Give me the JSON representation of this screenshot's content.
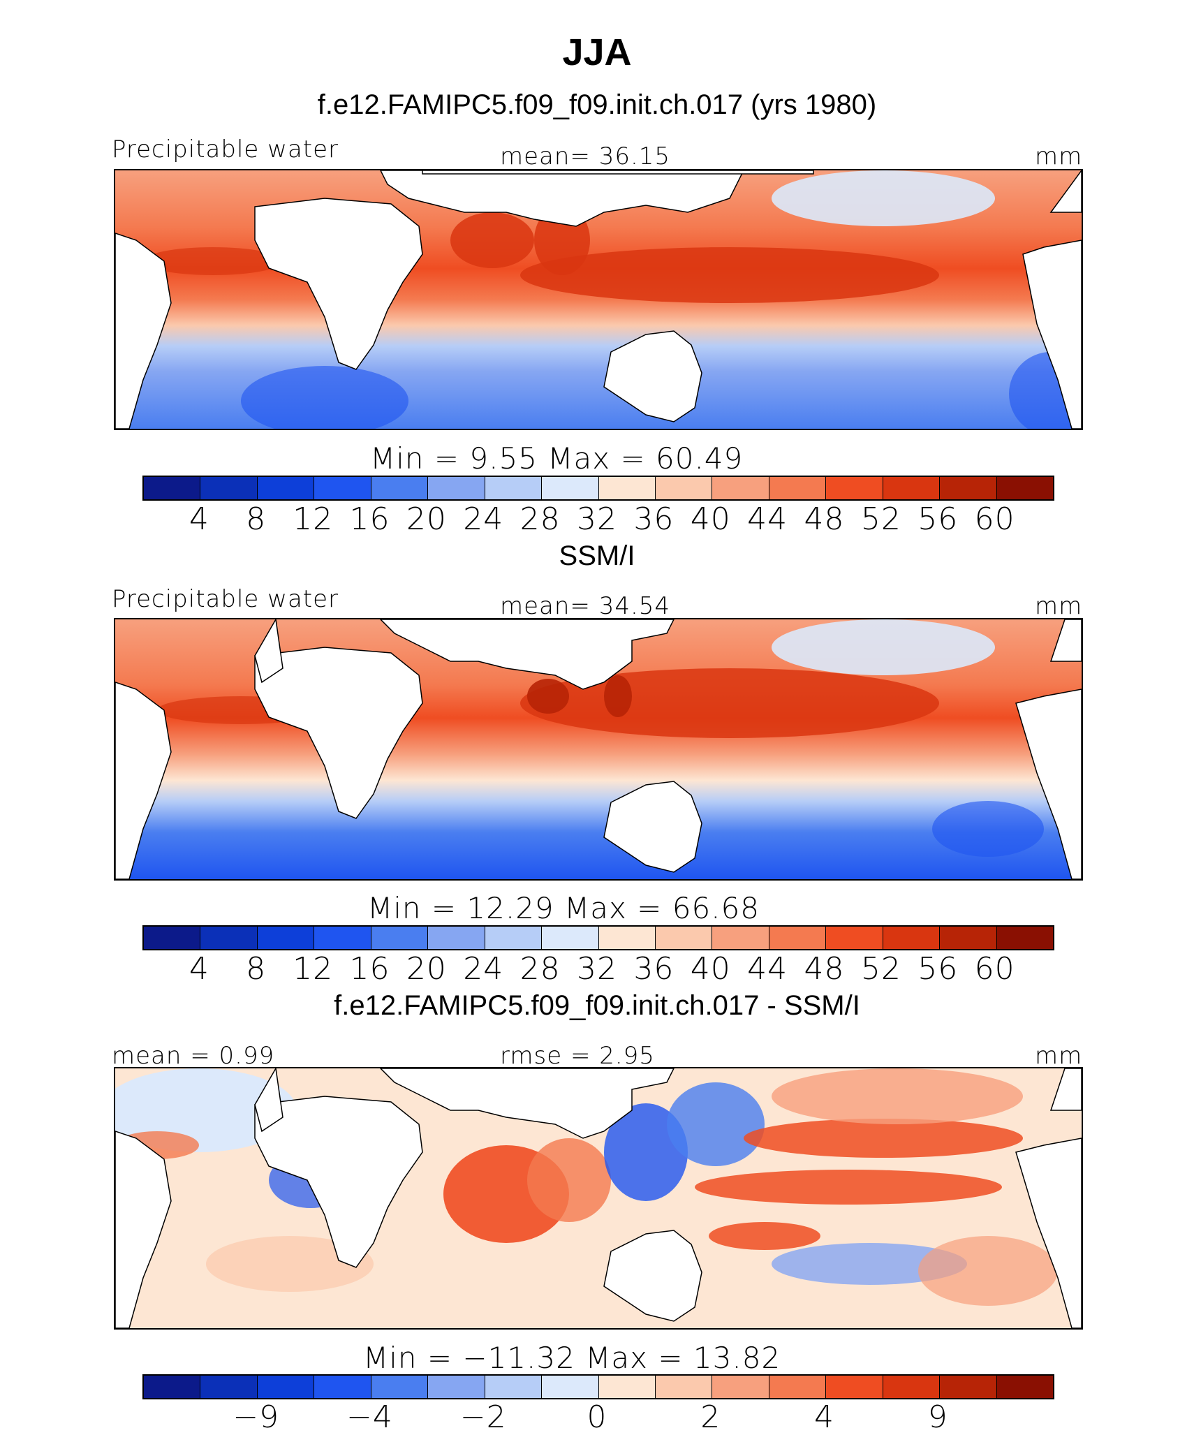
{
  "figure": {
    "title": "JJA",
    "panels": [
      {
        "header": "f.e12.FAMIPC5.f09_f09.init.ch.017 (yrs 1980)",
        "left_label": "Precipitable water",
        "center_label": "mean=   36.15",
        "right_label": "mm",
        "minmax": "Min  =    9.55  Max  =   60.49"
      },
      {
        "header": "SSM/I",
        "left_label": "Precipitable water",
        "center_label": "mean=   34.54",
        "right_label": "mm",
        "minmax": "Min  =   12.29  Max  =   66.68"
      },
      {
        "header": "f.e12.FAMIPC5.f09_f09.init.ch.017 - SSM/I",
        "left_label": "mean  =    0.99",
        "center_label": "rmse  =    2.95",
        "right_label": "mm",
        "minmax": "Min  = −11.32  Max  =   13.82"
      }
    ],
    "colorbar_colors": [
      "#0c1a8a",
      "#0b30b8",
      "#0d3fd9",
      "#1f55f0",
      "#4a7ef0",
      "#86a6f2",
      "#b6cdf7",
      "#dce9fb",
      "#fde6d3",
      "#fbc9ad",
      "#f7a07e",
      "#f47a50",
      "#ef4d22",
      "#d93610",
      "#b72406",
      "#8a1002"
    ],
    "colorbar_ticks_abs": [
      "4",
      "8",
      "12",
      "16",
      "20",
      "24",
      "28",
      "32",
      "36",
      "40",
      "44",
      "48",
      "52",
      "56",
      "60"
    ],
    "colorbar_ticks_diff": [
      "−9",
      "−4",
      "−2",
      "0",
      "2",
      "4",
      "9"
    ],
    "map_background_colors": {
      "land": "#ffffff",
      "coast": "#000000"
    }
  },
  "chart_data": [
    {
      "type": "heatmap",
      "title": "f.e12.FAMIPC5.f09_f09.init.ch.017 (yrs 1980)",
      "variable": "Precipitable water",
      "units": "mm",
      "mean": 36.15,
      "min": 9.55,
      "max": 60.49,
      "levels": [
        4,
        8,
        12,
        16,
        20,
        24,
        28,
        32,
        36,
        40,
        44,
        48,
        52,
        56,
        60
      ]
    },
    {
      "type": "heatmap",
      "title": "SSM/I",
      "variable": "Precipitable water",
      "units": "mm",
      "mean": 34.54,
      "min": 12.29,
      "max": 66.68,
      "levels": [
        4,
        8,
        12,
        16,
        20,
        24,
        28,
        32,
        36,
        40,
        44,
        48,
        52,
        56,
        60
      ]
    },
    {
      "type": "heatmap",
      "title": "f.e12.FAMIPC5.f09_f09.init.ch.017 - SSM/I",
      "units": "mm",
      "mean": 0.99,
      "rmse": 2.95,
      "min": -11.32,
      "max": 13.82,
      "levels": [
        -9,
        -4,
        -2,
        0,
        2,
        4,
        9
      ]
    }
  ]
}
